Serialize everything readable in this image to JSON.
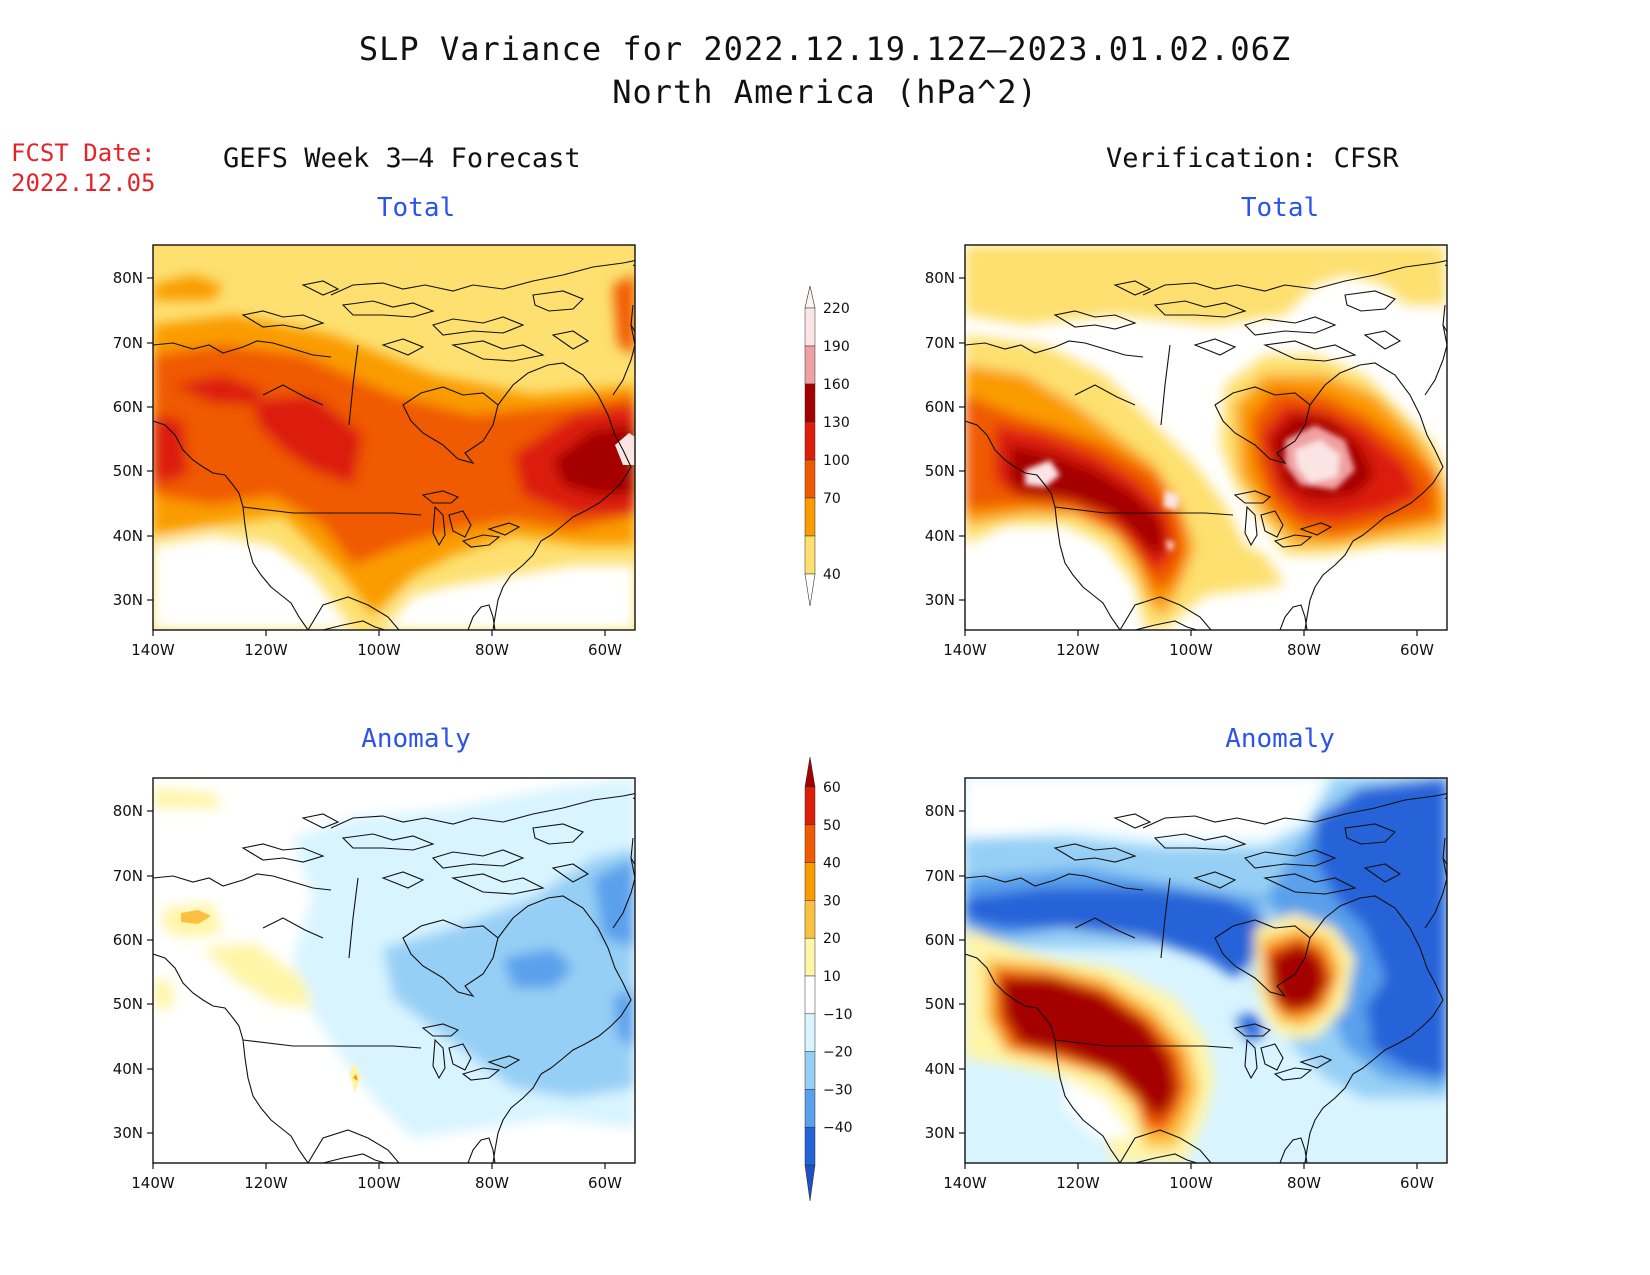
{
  "title_line1": "SLP Variance for 2022.12.19.12Z–2023.01.02.06Z",
  "title_line2": "North America (hPa^2)",
  "fcst_date_label": "FCST Date:",
  "fcst_date_value": "2022.12.05",
  "left_header": "GEFS Week 3–4 Forecast",
  "right_header": "Verification: CFSR",
  "panel_titles": {
    "top_left": "Total",
    "top_right": "Total",
    "bottom_left": "Anomaly",
    "bottom_right": "Anomaly"
  },
  "axes": {
    "lon_ticks": [
      "140W",
      "120W",
      "100W",
      "80W",
      "60W"
    ],
    "lat_ticks": [
      "80N",
      "70N",
      "60N",
      "50N",
      "40N",
      "30N"
    ]
  },
  "total_colorbar": {
    "levels": [
      "220",
      "190",
      "160",
      "130",
      "100",
      "70",
      "40"
    ],
    "colors": [
      "#fbe4e4",
      "#f0a0a0",
      "#a50000",
      "#dc1e0a",
      "#f05a00",
      "#fa9b00",
      "#fde070"
    ]
  },
  "anomaly_colorbar": {
    "levels": [
      "60",
      "50",
      "40",
      "30",
      "20",
      "10",
      "−10",
      "−20",
      "−30",
      "−40"
    ],
    "colors": [
      "#a50000",
      "#dc1e0a",
      "#f05a00",
      "#fa9b00",
      "#fcc040",
      "#fff5a8",
      "#ffffff",
      "#d8f4ff",
      "#96cff5",
      "#5aa0ec",
      "#2563d8",
      "#1e50c8"
    ]
  }
}
